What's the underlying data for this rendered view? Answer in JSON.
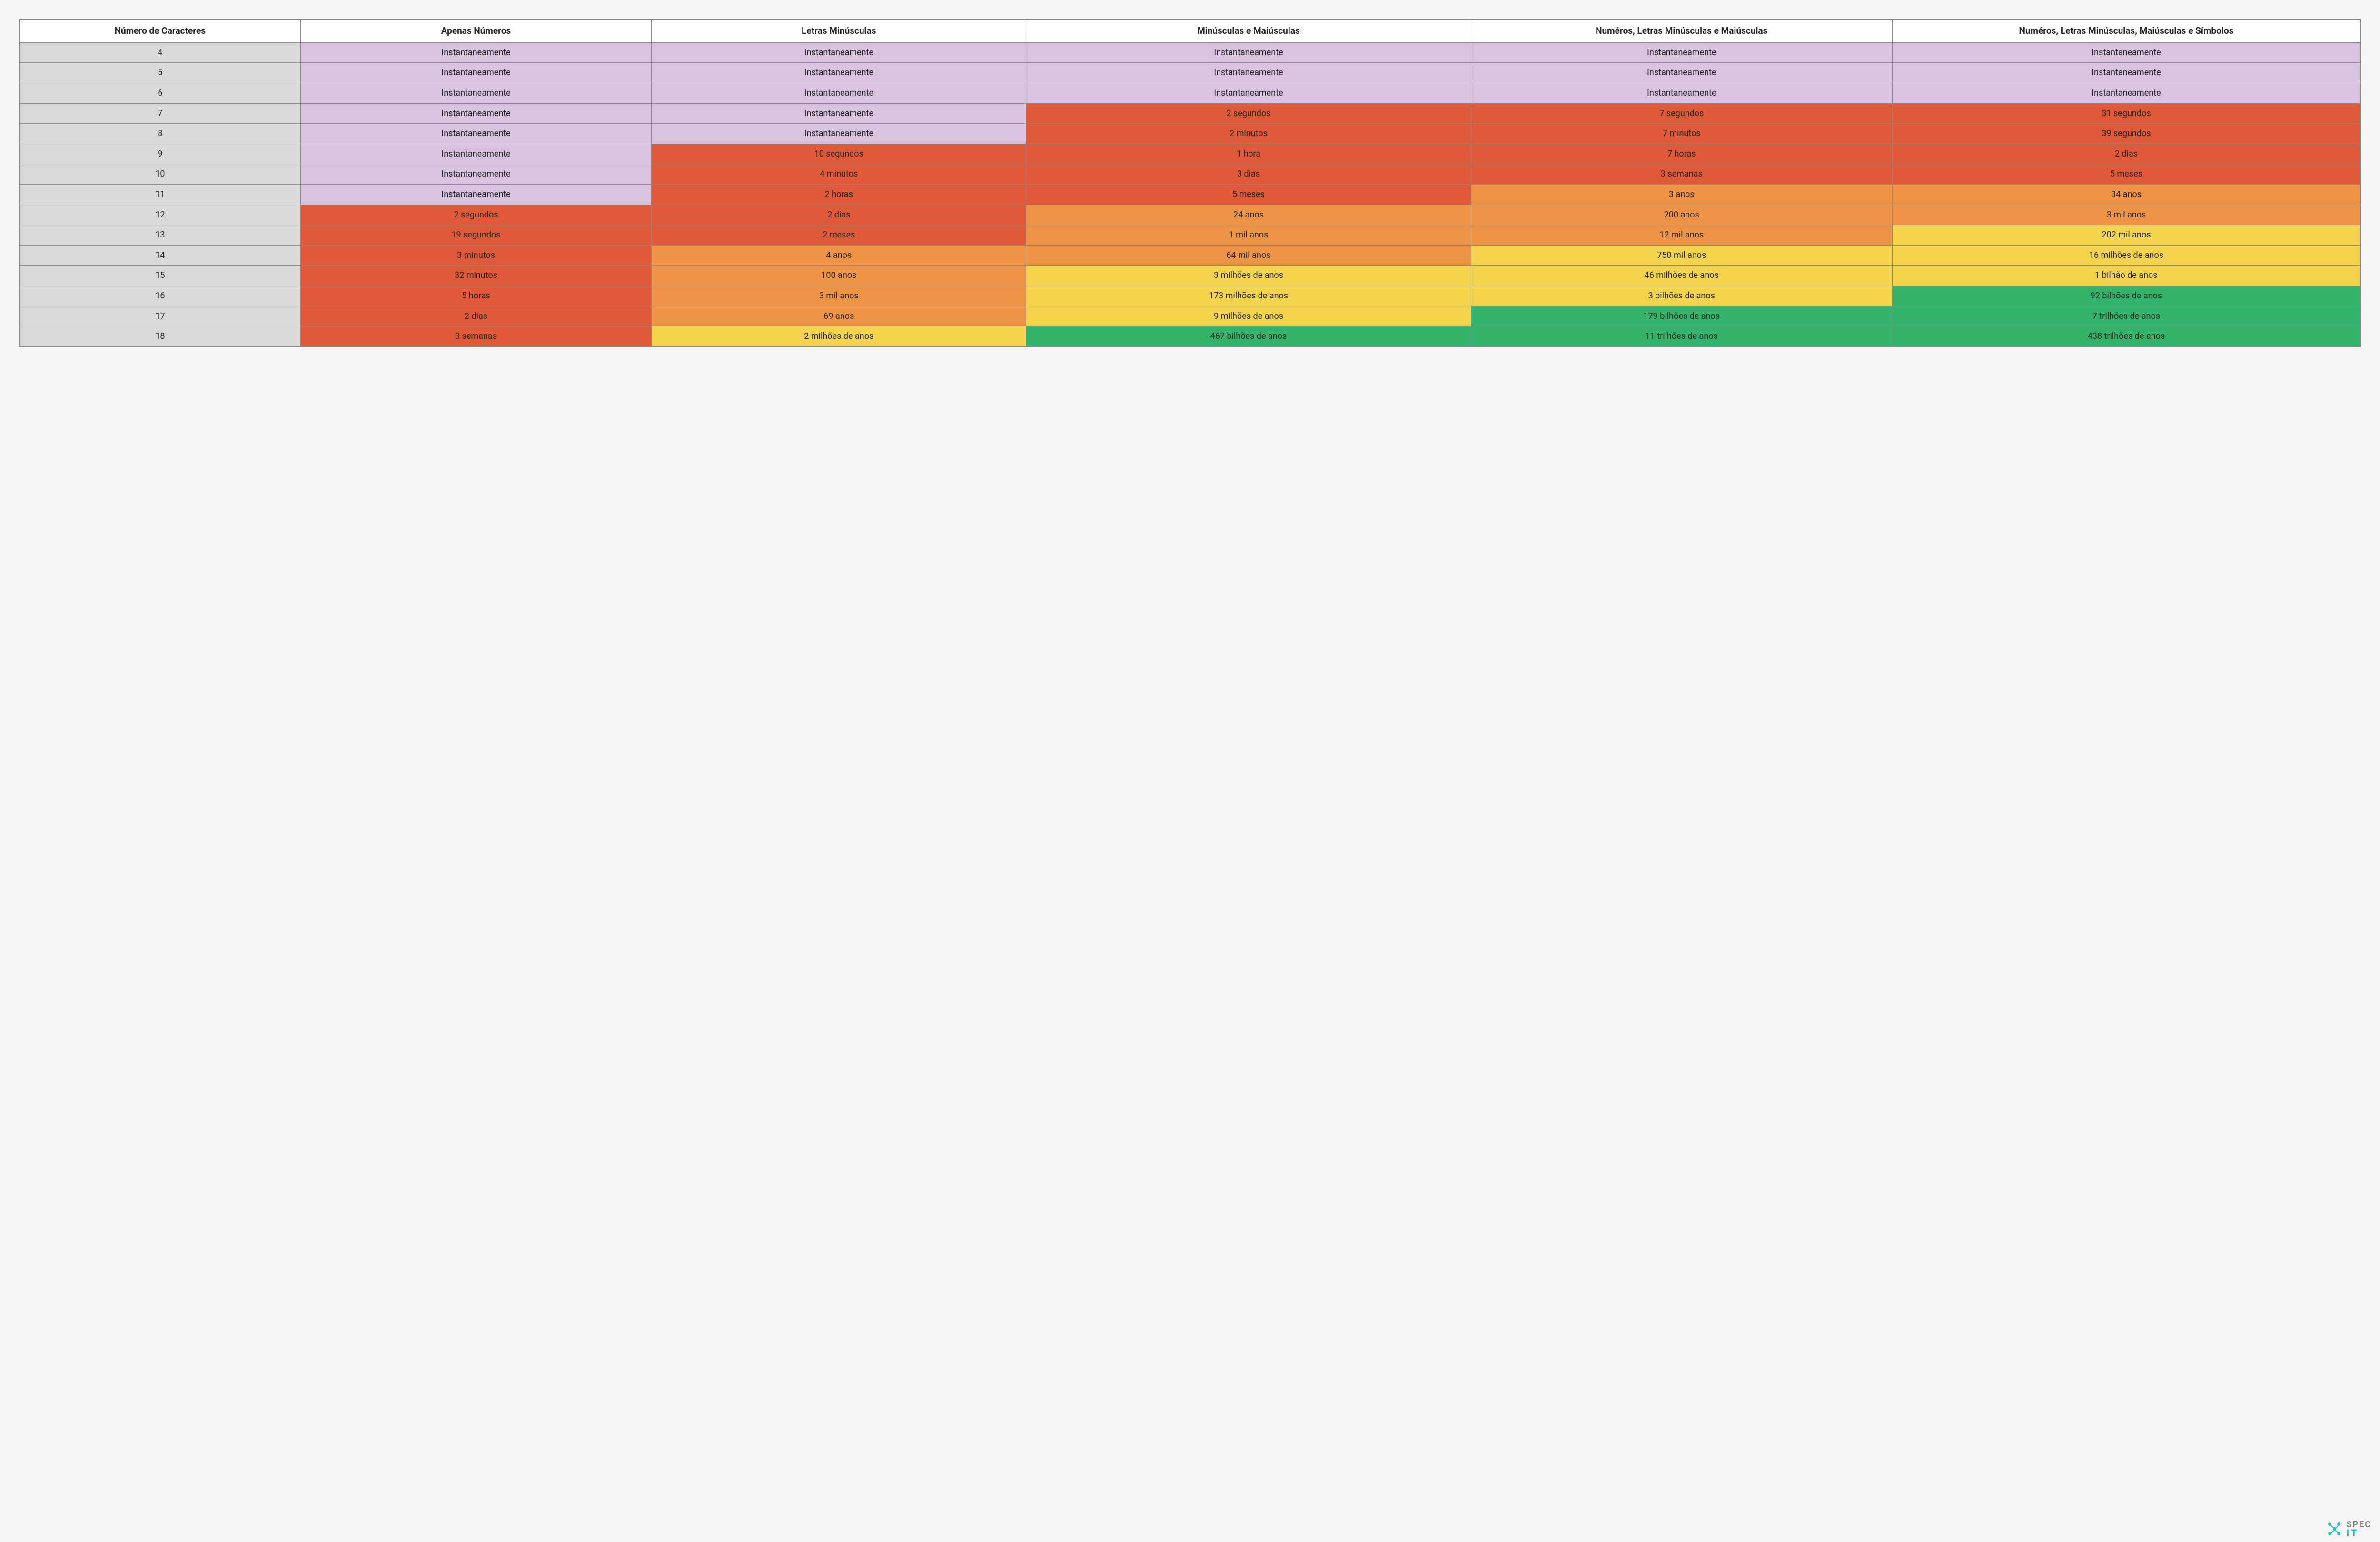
{
  "palette": {
    "header_bg": "#ffffff",
    "rowhdr_bg": "#d9d9d9",
    "border": "#888888",
    "page_bg": "#f5f5f5",
    "text": "#222222",
    "levels": {
      "purple": "#d8c2e0",
      "red": "#e05a3a",
      "orange": "#ef9344",
      "yellow": "#f2d34b",
      "green": "#32b46a"
    }
  },
  "typography": {
    "header_fontsize_pt": 14,
    "cell_fontsize_pt": 13,
    "font_family": "Roboto / Helvetica / Arial"
  },
  "table": {
    "type": "table",
    "column_widths_pct": [
      12,
      15,
      16,
      19,
      18,
      20
    ],
    "columns": [
      "Número de Caracteres",
      "Apenas Números",
      "Letras Minúsculas",
      "Minúsculas e Maiúsculas",
      "Numéros, Letras Minúsculas e Maiúsculas",
      "Numéros, Letras Minúsculas, Maiúsculas e Símbolos"
    ],
    "rows": [
      {
        "n": "4",
        "cells": [
          {
            "v": "Instantaneamente",
            "c": "purple"
          },
          {
            "v": "Instantaneamente",
            "c": "purple"
          },
          {
            "v": "Instantaneamente",
            "c": "purple"
          },
          {
            "v": "Instantaneamente",
            "c": "purple"
          },
          {
            "v": "Instantaneamente",
            "c": "purple"
          }
        ]
      },
      {
        "n": "5",
        "cells": [
          {
            "v": "Instantaneamente",
            "c": "purple"
          },
          {
            "v": "Instantaneamente",
            "c": "purple"
          },
          {
            "v": "Instantaneamente",
            "c": "purple"
          },
          {
            "v": "Instantaneamente",
            "c": "purple"
          },
          {
            "v": "Instantaneamente",
            "c": "purple"
          }
        ]
      },
      {
        "n": "6",
        "cells": [
          {
            "v": "Instantaneamente",
            "c": "purple"
          },
          {
            "v": "Instantaneamente",
            "c": "purple"
          },
          {
            "v": "Instantaneamente",
            "c": "purple"
          },
          {
            "v": "Instantaneamente",
            "c": "purple"
          },
          {
            "v": "Instantaneamente",
            "c": "purple"
          }
        ]
      },
      {
        "n": "7",
        "cells": [
          {
            "v": "Instantaneamente",
            "c": "purple"
          },
          {
            "v": "Instantaneamente",
            "c": "purple"
          },
          {
            "v": "2 segundos",
            "c": "red"
          },
          {
            "v": "7 segundos",
            "c": "red"
          },
          {
            "v": "31 segundos",
            "c": "red"
          }
        ]
      },
      {
        "n": "8",
        "cells": [
          {
            "v": "Instantaneamente",
            "c": "purple"
          },
          {
            "v": "Instantaneamente",
            "c": "purple"
          },
          {
            "v": "2 minutos",
            "c": "red"
          },
          {
            "v": "7 minutos",
            "c": "red"
          },
          {
            "v": "39 segundos",
            "c": "red"
          }
        ]
      },
      {
        "n": "9",
        "cells": [
          {
            "v": "Instantaneamente",
            "c": "purple"
          },
          {
            "v": "10 segundos",
            "c": "red"
          },
          {
            "v": "1 hora",
            "c": "red"
          },
          {
            "v": "7 horas",
            "c": "red"
          },
          {
            "v": "2 dias",
            "c": "red"
          }
        ]
      },
      {
        "n": "10",
        "cells": [
          {
            "v": "Instantaneamente",
            "c": "purple"
          },
          {
            "v": "4 minutos",
            "c": "red"
          },
          {
            "v": "3 dias",
            "c": "red"
          },
          {
            "v": "3 semanas",
            "c": "red"
          },
          {
            "v": "5 meses",
            "c": "red"
          }
        ]
      },
      {
        "n": "11",
        "cells": [
          {
            "v": "Instantaneamente",
            "c": "purple"
          },
          {
            "v": "2 horas",
            "c": "red"
          },
          {
            "v": "5 meses",
            "c": "red"
          },
          {
            "v": "3 anos",
            "c": "orange"
          },
          {
            "v": "34 anos",
            "c": "orange"
          }
        ]
      },
      {
        "n": "12",
        "cells": [
          {
            "v": "2 segundos",
            "c": "red"
          },
          {
            "v": "2 dias",
            "c": "red"
          },
          {
            "v": "24 anos",
            "c": "orange"
          },
          {
            "v": "200 anos",
            "c": "orange"
          },
          {
            "v": "3 mil anos",
            "c": "orange"
          }
        ]
      },
      {
        "n": "13",
        "cells": [
          {
            "v": "19 segundos",
            "c": "red"
          },
          {
            "v": "2 meses",
            "c": "red"
          },
          {
            "v": "1 mil anos",
            "c": "orange"
          },
          {
            "v": "12 mil anos",
            "c": "orange"
          },
          {
            "v": "202 mil anos",
            "c": "yellow"
          }
        ]
      },
      {
        "n": "14",
        "cells": [
          {
            "v": "3 minutos",
            "c": "red"
          },
          {
            "v": "4 anos",
            "c": "orange"
          },
          {
            "v": "64 mil anos",
            "c": "orange"
          },
          {
            "v": "750 mil anos",
            "c": "yellow"
          },
          {
            "v": "16 milhões de anos",
            "c": "yellow"
          }
        ]
      },
      {
        "n": "15",
        "cells": [
          {
            "v": "32 minutos",
            "c": "red"
          },
          {
            "v": "100 anos",
            "c": "orange"
          },
          {
            "v": "3 milhões de anos",
            "c": "yellow"
          },
          {
            "v": "46 milhões de anos",
            "c": "yellow"
          },
          {
            "v": "1 bilhão de anos",
            "c": "yellow"
          }
        ]
      },
      {
        "n": "16",
        "cells": [
          {
            "v": "5 horas",
            "c": "red"
          },
          {
            "v": "3 mil anos",
            "c": "orange"
          },
          {
            "v": "173 milhões de anos",
            "c": "yellow"
          },
          {
            "v": "3 bilhões de anos",
            "c": "yellow"
          },
          {
            "v": "92 bilhões de anos",
            "c": "green"
          }
        ]
      },
      {
        "n": "17",
        "cells": [
          {
            "v": "2 dias",
            "c": "red"
          },
          {
            "v": "69 anos",
            "c": "orange"
          },
          {
            "v": "9 milhões de anos",
            "c": "yellow"
          },
          {
            "v": "179 bilhões de anos",
            "c": "green"
          },
          {
            "v": "7 trilhões de anos",
            "c": "green"
          }
        ]
      },
      {
        "n": "18",
        "cells": [
          {
            "v": "3 semanas",
            "c": "red"
          },
          {
            "v": "2 milhões de anos",
            "c": "yellow"
          },
          {
            "v": "467 bilhões de anos",
            "c": "green"
          },
          {
            "v": "11 trilhões de anos",
            "c": "green"
          },
          {
            "v": "438 trilhões de anos",
            "c": "green"
          }
        ]
      }
    ]
  },
  "logo": {
    "line1": "SPEC",
    "line2": "IT",
    "accent_color": "#23c3c3",
    "text_color": "#7a7a7a"
  }
}
